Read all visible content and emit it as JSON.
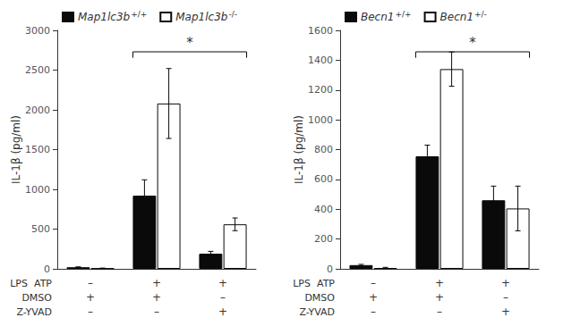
{
  "chart_data": [
    {
      "type": "bar",
      "categories": [
        null,
        null,
        null
      ],
      "x_rows": [
        {
          "label": "LPS  ATP",
          "marks": [
            "–",
            "+",
            "+"
          ]
        },
        {
          "label": "DMSO",
          "marks": [
            "+",
            "+",
            "–"
          ]
        },
        {
          "label": "Z-YVAD",
          "marks": [
            "–",
            "–",
            "+"
          ]
        }
      ],
      "series": [
        {
          "name": "Map1lc3b+/+",
          "color": "#0a0a0a",
          "values": [
            20,
            920,
            190
          ],
          "errors": [
            5,
            200,
            30
          ]
        },
        {
          "name": "Map1lc3b-/-",
          "color": "#ffffff",
          "values": [
            5,
            2080,
            560
          ],
          "errors": [
            5,
            440,
            80
          ]
        }
      ],
      "ylabel": "IL-1β (pg/ml)",
      "ylim": [
        0,
        3000
      ],
      "yticks": [
        0,
        500,
        1000,
        1500,
        2000,
        2500,
        3000
      ],
      "grid": false,
      "legend": "upper left",
      "annotations": [
        {
          "text": "*",
          "groups": [
            1,
            2
          ]
        }
      ]
    },
    {
      "type": "bar",
      "categories": [
        null,
        null,
        null
      ],
      "x_rows": [
        {
          "label": "LPS  ATP",
          "marks": [
            "–",
            "+",
            "+"
          ]
        },
        {
          "label": "DMSO",
          "marks": [
            "+",
            "+",
            "–"
          ]
        },
        {
          "label": "Z-YVAD",
          "marks": [
            "–",
            "–",
            "+"
          ]
        }
      ],
      "series": [
        {
          "name": "Becn1+/+",
          "color": "#0a0a0a",
          "values": [
            25,
            755,
            460
          ],
          "errors": [
            5,
            75,
            95
          ]
        },
        {
          "name": "Becn1+/-",
          "color": "#ffffff",
          "values": [
            5,
            1340,
            405
          ],
          "errors": [
            5,
            115,
            150
          ]
        }
      ],
      "ylabel": "IL-1β (pg/ml)",
      "ylim": [
        0,
        1600
      ],
      "yticks": [
        0,
        200,
        400,
        600,
        800,
        1000,
        1200,
        1400,
        1600
      ],
      "grid": false,
      "legend": "upper left",
      "annotations": [
        {
          "text": "*",
          "groups": [
            1,
            2
          ]
        }
      ]
    }
  ]
}
